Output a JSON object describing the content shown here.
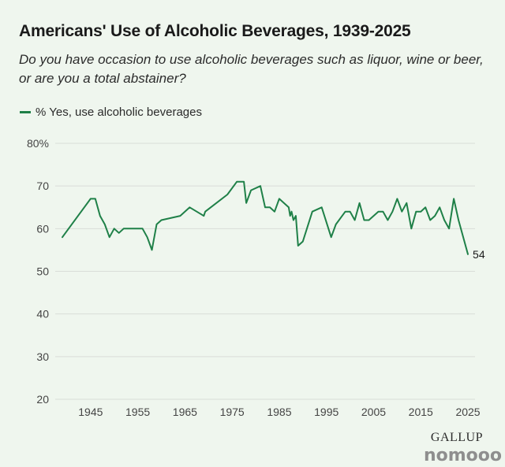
{
  "title": "Americans' Use of Alcoholic Beverages, 1939-2025",
  "subtitle": "Do you have occasion to use alcoholic beverages such as liquor, wine or beer, or are you a total abstainer?",
  "source": "GALLUP",
  "watermark": "nomooo",
  "colors": {
    "line": "#1f8048",
    "grid": "#d9ddd8",
    "tick_text": "#444444",
    "background": "#eff6ee"
  },
  "chart_data": {
    "type": "line",
    "title": "Americans' Use of Alcoholic Beverages, 1939-2025",
    "xlabel": "",
    "ylabel": "",
    "xlim": [
      1937.5,
      2026.5
    ],
    "ylim": [
      20,
      80
    ],
    "grid": true,
    "legend_position": "top-left",
    "x_ticks": [
      1945,
      1955,
      1965,
      1975,
      1985,
      1995,
      2005,
      2015,
      2025
    ],
    "y_ticks": [
      20,
      30,
      40,
      50,
      60,
      70,
      80
    ],
    "y_tick_labels": [
      "20",
      "30",
      "40",
      "50",
      "60",
      "70",
      "80%"
    ],
    "series": [
      {
        "name": "% Yes, use alcoholic beverages",
        "color": "#1f8048",
        "end_label": "54",
        "x": [
          1939,
          1945,
          1946,
          1947,
          1948,
          1949,
          1950,
          1951,
          1952,
          1953,
          1954,
          1956,
          1957,
          1958,
          1959,
          1960,
          1964,
          1966,
          1969,
          1969.3,
          1974,
          1976,
          1977,
          1977.5,
          1978,
          1979,
          1981,
          1982,
          1983,
          1984,
          1985,
          1987,
          1987.3,
          1987.6,
          1988,
          1988.5,
          1989,
          1990,
          1992,
          1994,
          1996,
          1997,
          1999,
          2000,
          2001,
          2002,
          2003,
          2004,
          2005,
          2006,
          2007,
          2008,
          2009,
          2010,
          2011,
          2012,
          2013,
          2014,
          2015,
          2016,
          2017,
          2018,
          2019,
          2020,
          2021,
          2022,
          2023,
          2025
        ],
        "y": [
          58,
          67,
          67,
          63,
          61,
          58,
          60,
          59,
          60,
          60,
          60,
          60,
          58,
          55,
          61,
          62,
          63,
          65,
          63,
          64,
          68,
          71,
          71,
          71,
          66,
          69,
          70,
          65,
          65,
          64,
          67,
          65,
          63,
          64,
          62,
          63,
          56,
          57,
          64,
          65,
          58,
          61,
          64,
          64,
          62,
          66,
          62,
          62,
          63,
          64,
          64,
          62,
          64,
          67,
          64,
          66,
          60,
          64,
          64,
          65,
          62,
          63,
          65,
          62,
          60,
          67,
          62,
          54
        ]
      }
    ]
  }
}
